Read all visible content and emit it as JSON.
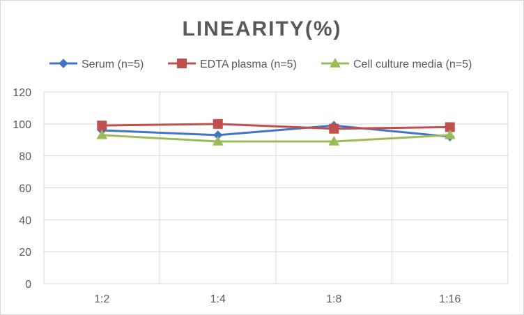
{
  "chart_data": {
    "type": "line",
    "title": "LINEARITY(%)",
    "xlabel": "",
    "ylabel": "",
    "categories": [
      "1:2",
      "1:4",
      "1:8",
      "1:16"
    ],
    "ylim": [
      0,
      120
    ],
    "yticks": [
      0,
      20,
      40,
      60,
      80,
      100,
      120
    ],
    "grid": "vertical and horizontal",
    "legend_position": "top",
    "series": [
      {
        "name": "Serum (n=5)",
        "values": [
          96,
          93,
          99,
          92
        ],
        "color": "#4472c4",
        "marker": "diamond"
      },
      {
        "name": "EDTA plasma (n=5)",
        "values": [
          99,
          100,
          97,
          98
        ],
        "color": "#c0504d",
        "marker": "square"
      },
      {
        "name": "Cell culture media (n=5)",
        "values": [
          93,
          89,
          89,
          93
        ],
        "color": "#9bbb59",
        "marker": "triangle"
      }
    ]
  }
}
